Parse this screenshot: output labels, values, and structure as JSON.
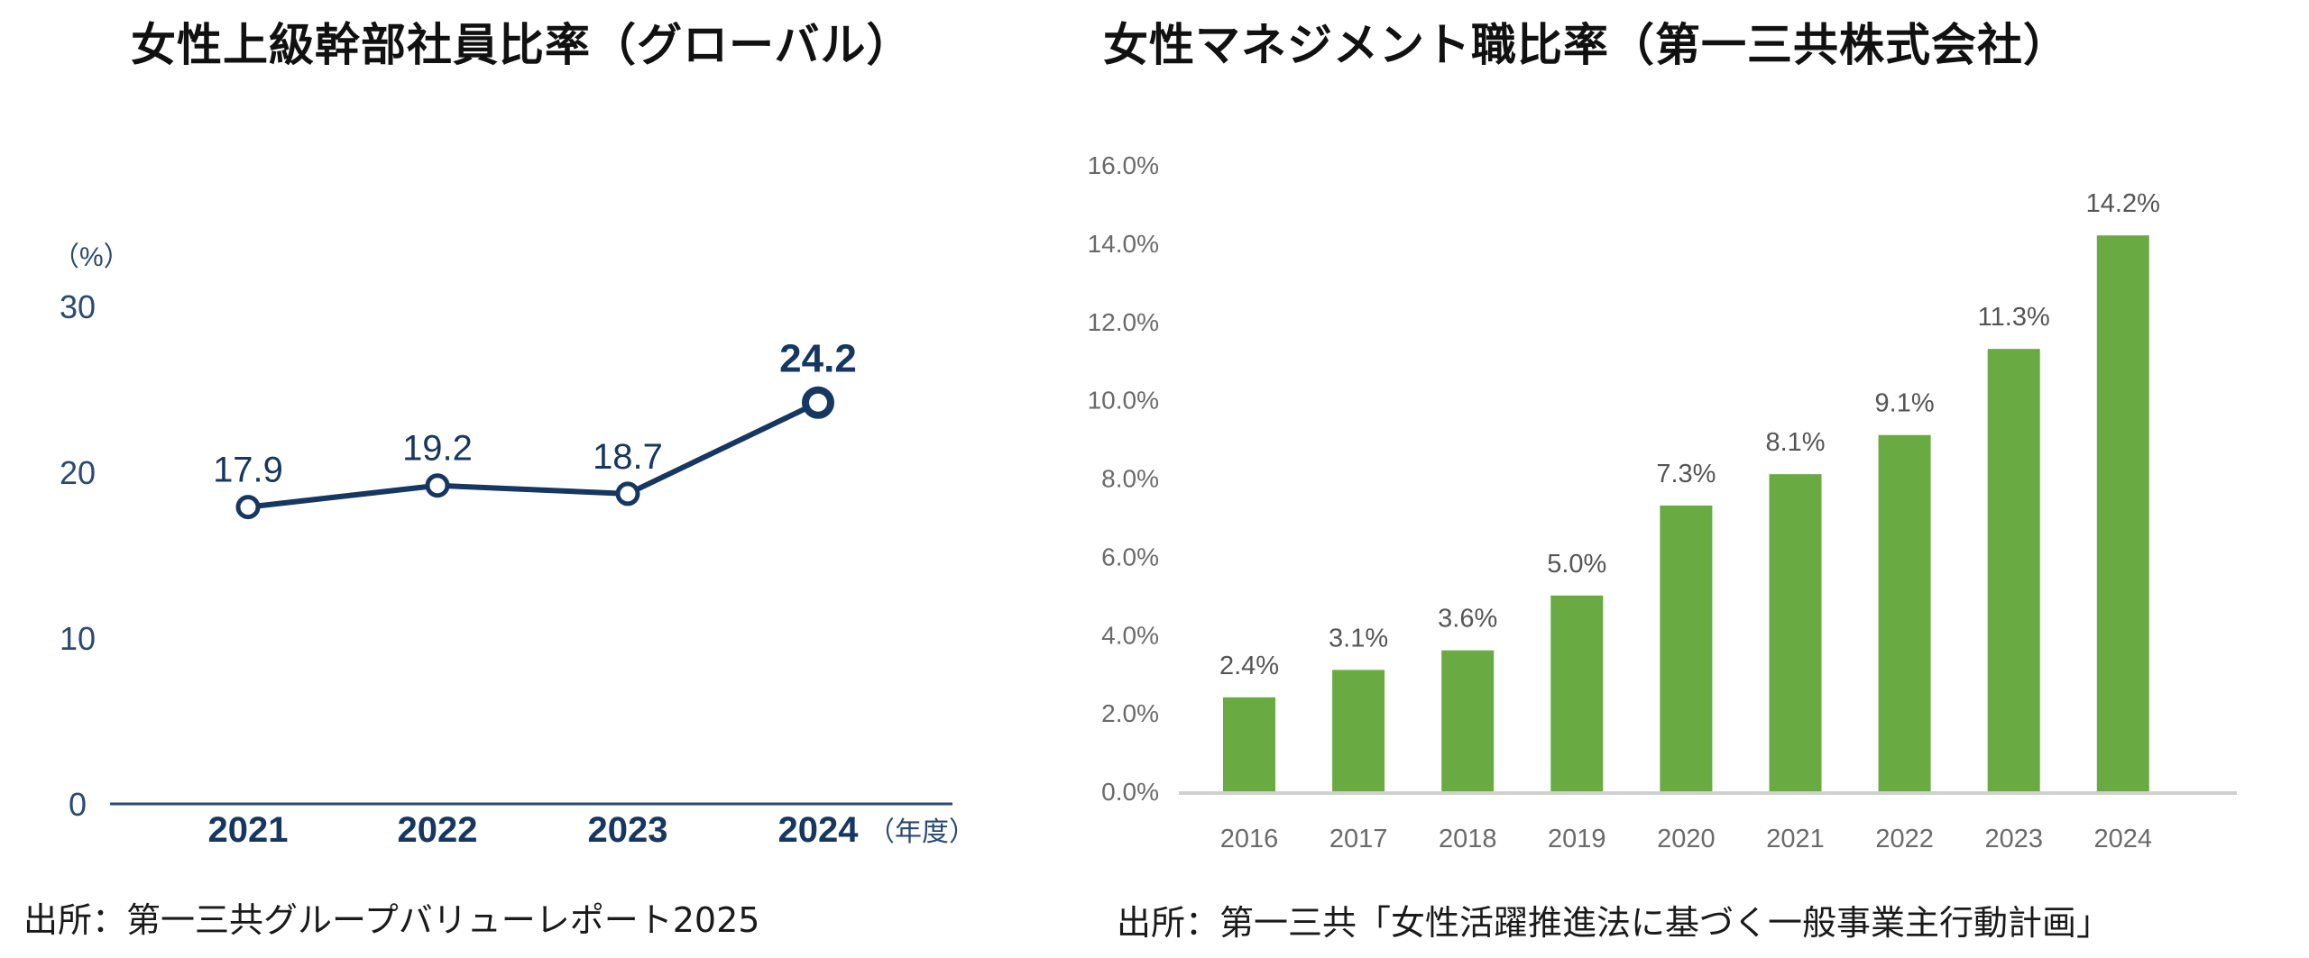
{
  "left": {
    "title": "女性上級幹部社員比率（グローバル）",
    "source": "出所：第一三共グループバリューレポート2025"
  },
  "right": {
    "title": "女性マネジメント職比率（第一三共株式会社）",
    "source": "出所：第一三共「女性活躍推進法に基づく一般事業主行動計画」"
  },
  "colors": {
    "line": "#163761",
    "axis_left": "#2a4a75",
    "bar": "#6aaa42",
    "axis_right": "#d0d0d0"
  },
  "chart_data": [
    {
      "type": "line",
      "title": "女性上級幹部社員比率（グローバル）",
      "xlabel": "（年度）",
      "ylabel": "（%）",
      "categories": [
        "2021",
        "2022",
        "2023",
        "2024"
      ],
      "values": [
        17.9,
        19.2,
        18.7,
        24.2
      ],
      "value_labels": [
        "17.9",
        "19.2",
        "18.7",
        "24.2"
      ],
      "highlight_last": true,
      "ylim": [
        0,
        30
      ],
      "yticks": [
        0,
        10,
        20,
        30
      ],
      "ytick_labels": [
        "0",
        "10",
        "20",
        "30"
      ],
      "grid": false,
      "legend": "none"
    },
    {
      "type": "bar",
      "title": "女性マネジメント職比率（第一三共株式会社）",
      "xlabel": "",
      "ylabel": "",
      "categories": [
        "2016",
        "2017",
        "2018",
        "2019",
        "2020",
        "2021",
        "2022",
        "2023",
        "2024"
      ],
      "values": [
        2.4,
        3.1,
        3.6,
        5.0,
        7.3,
        8.1,
        9.1,
        11.3,
        14.2
      ],
      "value_labels": [
        "2.4%",
        "3.1%",
        "3.6%",
        "5.0%",
        "7.3%",
        "8.1%",
        "9.1%",
        "11.3%",
        "14.2%"
      ],
      "ylim": [
        0,
        16
      ],
      "yticks": [
        0,
        2,
        4,
        6,
        8,
        10,
        12,
        14,
        16
      ],
      "ytick_labels": [
        "0.0%",
        "2.0%",
        "4.0%",
        "6.0%",
        "8.0%",
        "10.0%",
        "12.0%",
        "14.0%",
        "16.0%"
      ],
      "grid": false,
      "legend": "none"
    }
  ]
}
